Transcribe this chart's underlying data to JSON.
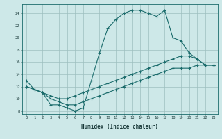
{
  "title": "",
  "xlabel": "Humidex (Indice chaleur)",
  "bg_color": "#cde8e8",
  "grid_color": "#9dbfbf",
  "line_color": "#1a6b6b",
  "xlim": [
    -0.5,
    23.5
  ],
  "ylim": [
    7.5,
    25.5
  ],
  "xticks": [
    0,
    1,
    2,
    3,
    4,
    5,
    6,
    7,
    8,
    9,
    10,
    11,
    12,
    13,
    14,
    15,
    16,
    17,
    18,
    19,
    20,
    21,
    22,
    23
  ],
  "yticks": [
    8,
    10,
    12,
    14,
    16,
    18,
    20,
    22,
    24
  ],
  "line1_x": [
    0,
    1,
    2,
    3,
    4,
    5,
    6,
    7,
    8,
    9,
    10,
    11,
    12,
    13,
    14,
    15,
    16,
    17,
    18,
    19,
    20,
    21,
    22,
    23
  ],
  "line1_y": [
    13,
    11.5,
    11,
    9,
    9,
    8.5,
    8,
    8.5,
    13,
    17.5,
    21.5,
    23,
    24,
    24.5,
    24.5,
    24,
    23.5,
    24.5,
    20,
    19.5,
    17.5,
    16.5,
    15.5,
    15.5
  ],
  "line2_x": [
    0,
    1,
    2,
    3,
    4,
    5,
    6,
    7,
    8,
    9,
    10,
    11,
    12,
    13,
    14,
    15,
    16,
    17,
    18,
    19,
    20,
    21,
    22,
    23
  ],
  "line2_y": [
    12,
    11.5,
    11,
    10.5,
    10,
    10,
    10.5,
    11,
    11.5,
    12,
    12.5,
    13,
    13.5,
    14,
    14.5,
    15,
    15.5,
    16,
    16.5,
    17,
    17,
    16.5,
    15.5,
    15.5
  ],
  "line3_x": [
    0,
    1,
    2,
    3,
    4,
    5,
    6,
    7,
    8,
    9,
    10,
    11,
    12,
    13,
    14,
    15,
    16,
    17,
    18,
    19,
    20,
    21,
    22,
    23
  ],
  "line3_y": [
    12,
    11.5,
    11,
    10,
    9.5,
    9,
    9,
    9.5,
    10,
    10.5,
    11,
    11.5,
    12,
    12.5,
    13,
    13.5,
    14,
    14.5,
    15,
    15,
    15,
    15.5,
    15.5,
    15.5
  ]
}
